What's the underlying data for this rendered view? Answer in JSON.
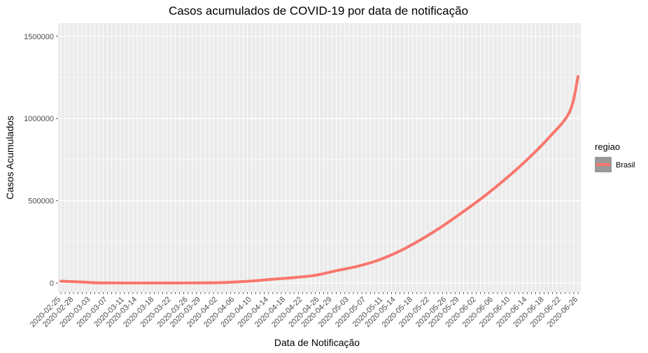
{
  "chart_data": {
    "type": "line",
    "title": "Casos acumulados de COVID-19 por data de notificação",
    "xlabel": "Data de Notificação",
    "ylabel": "Casos Acumulados",
    "x_type": "date",
    "xlim": [
      "2020-02-25",
      "2020-06-26"
    ],
    "ylim": [
      -55000,
      1580000
    ],
    "yticks": [
      {
        "value": 0,
        "label": "0"
      },
      {
        "value": 500000,
        "label": "500000"
      },
      {
        "value": 1000000,
        "label": "1000000"
      },
      {
        "value": 1500000,
        "label": "1500000"
      }
    ],
    "xtick_labels": [
      "2020-02-25",
      "2020-02-28",
      "2020-03-03",
      "2020-03-07",
      "2020-03-11",
      "2020-03-14",
      "2020-03-18",
      "2020-03-22",
      "2020-03-26",
      "2020-03-29",
      "2020-04-02",
      "2020-04-06",
      "2020-04-10",
      "2020-04-14",
      "2020-04-18",
      "2020-04-22",
      "2020-04-26",
      "2020-04-29",
      "2020-05-03",
      "2020-05-07",
      "2020-05-11",
      "2020-05-14",
      "2020-05-18",
      "2020-05-22",
      "2020-05-26",
      "2020-05-29",
      "2020-06-02",
      "2020-06-06",
      "2020-06-10",
      "2020-06-14",
      "2020-06-18",
      "2020-06-22",
      "2020-06-26"
    ],
    "grid": true,
    "legend": {
      "title": "regiao",
      "position": "right"
    },
    "series": [
      {
        "name": "Brasil",
        "color": "#f8766d",
        "points": [
          [
            "2020-02-25",
            11000
          ],
          [
            "2020-03-01",
            6000
          ],
          [
            "2020-03-05",
            1000
          ],
          [
            "2020-03-15",
            500
          ],
          [
            "2020-03-25",
            600
          ],
          [
            "2020-04-01",
            1500
          ],
          [
            "2020-04-05",
            5000
          ],
          [
            "2020-04-10",
            12000
          ],
          [
            "2020-04-15",
            23000
          ],
          [
            "2020-04-20",
            33000
          ],
          [
            "2020-04-25",
            47000
          ],
          [
            "2020-04-30",
            75000
          ],
          [
            "2020-05-05",
            102000
          ],
          [
            "2020-05-10",
            140000
          ],
          [
            "2020-05-15",
            195000
          ],
          [
            "2020-05-20",
            265000
          ],
          [
            "2020-05-25",
            345000
          ],
          [
            "2020-05-30",
            435000
          ],
          [
            "2020-06-04",
            530000
          ],
          [
            "2020-06-09",
            635000
          ],
          [
            "2020-06-14",
            750000
          ],
          [
            "2020-06-19",
            880000
          ],
          [
            "2020-06-24",
            1040000
          ],
          [
            "2020-06-26",
            1255000
          ]
        ]
      }
    ]
  }
}
